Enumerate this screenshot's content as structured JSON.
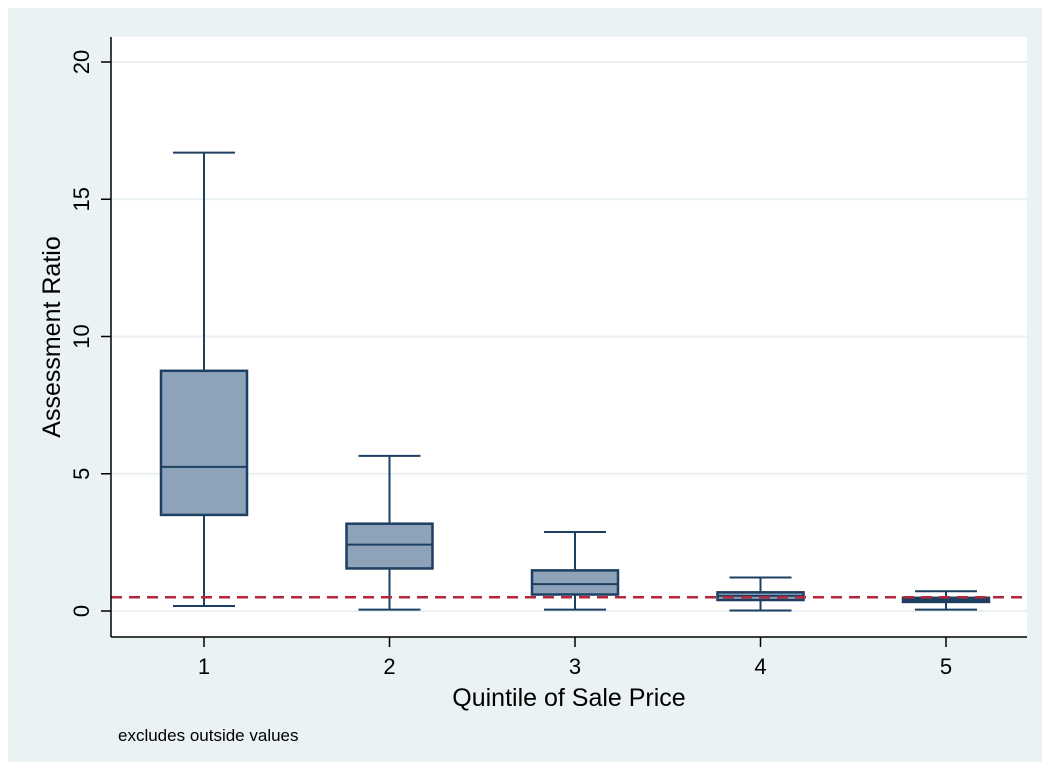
{
  "chart_data": {
    "type": "box",
    "xlabel": "Quintile of Sale Price",
    "ylabel": "Assessment Ratio",
    "note": "excludes outside values",
    "ylim": [
      0,
      20
    ],
    "yticks": [
      0,
      5,
      10,
      15,
      20
    ],
    "categories": [
      "1",
      "2",
      "3",
      "4",
      "5"
    ],
    "boxes": [
      {
        "category": "1",
        "whisker_low": 0.18,
        "q1": 3.5,
        "median": 5.25,
        "q3": 8.75,
        "whisker_high": 16.7
      },
      {
        "category": "2",
        "whisker_low": 0.05,
        "q1": 1.55,
        "median": 2.42,
        "q3": 3.18,
        "whisker_high": 5.65
      },
      {
        "category": "3",
        "whisker_low": 0.05,
        "q1": 0.6,
        "median": 0.98,
        "q3": 1.48,
        "whisker_high": 2.88
      },
      {
        "category": "4",
        "whisker_low": 0.02,
        "q1": 0.4,
        "median": 0.55,
        "q3": 0.68,
        "whisker_high": 1.22
      },
      {
        "category": "5",
        "whisker_low": 0.05,
        "q1": 0.33,
        "median": 0.4,
        "q3": 0.48,
        "whisker_high": 0.72
      }
    ],
    "reference_line": {
      "y": 0.5,
      "style": "dashed",
      "color": "#b5283c"
    },
    "grid": true,
    "colors": {
      "box_fill": "#8ea3b9",
      "box_stroke": "#1c3f62",
      "background": "#eaf2f3",
      "grid": "#ffffff"
    }
  }
}
